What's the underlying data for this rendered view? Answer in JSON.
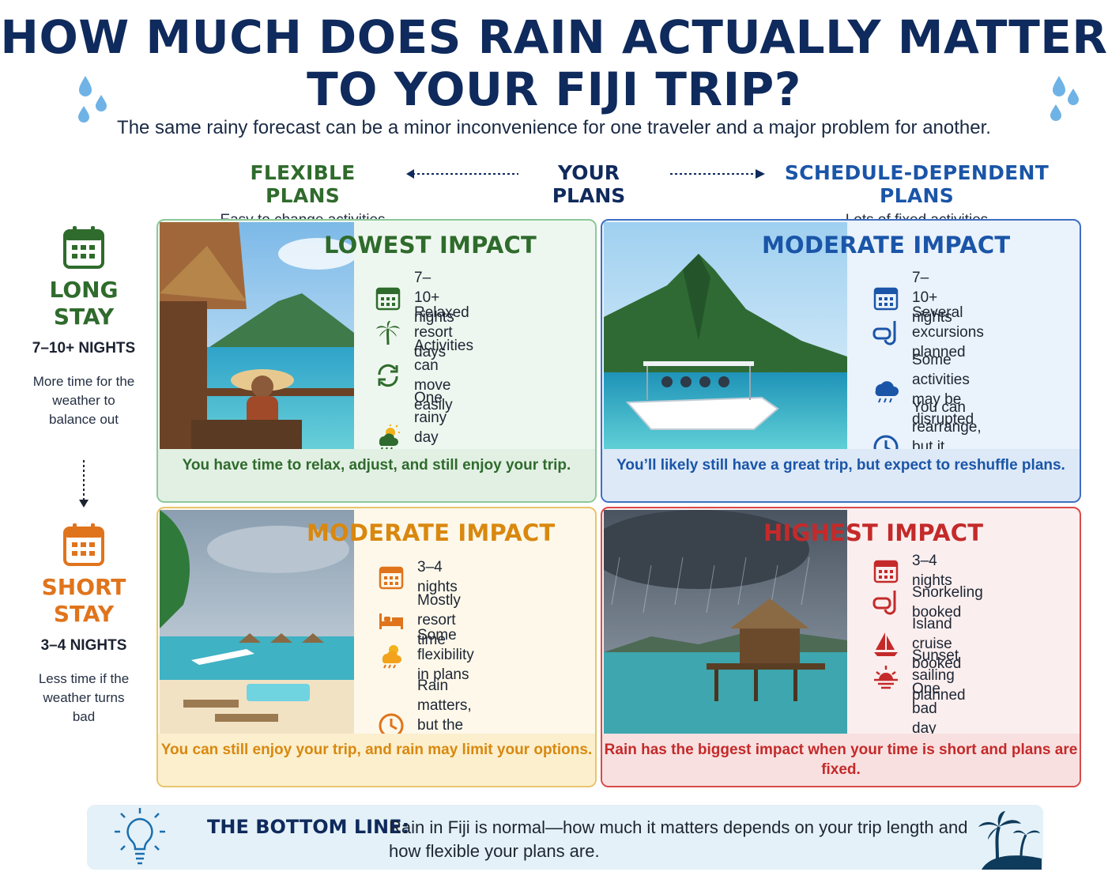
{
  "header": {
    "title": "HOW MUCH DOES RAIN ACTUALLY MATTER TO YOUR FIJI TRIP?",
    "subtitle": "The same rainy forecast can be a minor inconvenience for one traveler and a major problem for another."
  },
  "axis": {
    "flexible": {
      "label": "FLEXIBLE PLANS",
      "sub": "Easy to change activities"
    },
    "center": "YOUR PLANS",
    "schedule": {
      "label": "SCHEDULE-DEPENDENT PLANS",
      "sub": "Lots of fixed activities"
    }
  },
  "stays": {
    "long": {
      "title": "LONG STAY",
      "nights": "7–10+ NIGHTS",
      "note": "More time for the weather to balance out"
    },
    "short": {
      "title": "SHORT STAY",
      "nights": "3–4 NIGHTS",
      "note": "Less time if the weather turns bad"
    }
  },
  "panels": {
    "lowest": {
      "title": "LOWEST IMPACT",
      "image": "resort-balcony-woman-mountain-view",
      "items": [
        {
          "icon": "calendar-icon",
          "text": "7–10+ nights"
        },
        {
          "icon": "palm-tree-icon",
          "text": "Relaxed resort days"
        },
        {
          "icon": "refresh-icon",
          "text": "Activities can move easily"
        },
        {
          "icon": "sun-rain-icon",
          "text": "One rainy day matters less"
        }
      ],
      "footer": "You have time to relax, adjust, and still enjoy your trip."
    },
    "moderate_long": {
      "title": "MODERATE IMPACT",
      "image": "excursion-boat-island-mountain",
      "items": [
        {
          "icon": "calendar-icon",
          "text": "7–10+ nights"
        },
        {
          "icon": "snorkel-icon",
          "text": "Several excursions planned"
        },
        {
          "icon": "rain-cloud-icon",
          "text": "Some activities may be disrupted"
        },
        {
          "icon": "clock-icon",
          "text": "You can rearrange, but it takes flexibility"
        }
      ],
      "footer": "You’ll likely still have a great trip, but expect to reshuffle plans."
    },
    "moderate_short": {
      "title": "MODERATE IMPACT",
      "image": "beach-loungers-overwater-bungalows",
      "items": [
        {
          "icon": "calendar-icon",
          "text": "3–4 nights"
        },
        {
          "icon": "bed-icon",
          "text": "Mostly resort time"
        },
        {
          "icon": "sun-rain-icon",
          "text": "Some flexibility in plans"
        },
        {
          "icon": "clock-icon",
          "text": "Rain matters, but the trip can adapt"
        }
      ],
      "footer": "You can still enjoy your trip, and rain may limit your options."
    },
    "highest": {
      "title": "HIGHEST IMPACT",
      "image": "stormy-overwater-bungalow",
      "items": [
        {
          "icon": "calendar-icon",
          "text": "3–4 nights"
        },
        {
          "icon": "snorkel-icon",
          "text": "Snorkeling booked"
        },
        {
          "icon": "sailboat-icon",
          "text": "Island cruise booked"
        },
        {
          "icon": "sunset-icon",
          "text": "Sunset sailing planned"
        },
        {
          "icon": "storm-cloud-icon",
          "text": "One bad day can affect a large part of the trip"
        }
      ],
      "footer": "Rain has the biggest impact when your time is short and plans are fixed."
    }
  },
  "bottom_line": {
    "label": "THE BOTTOM LINE:",
    "text": "Rain in Fiji is normal—how much it matters depends on your trip length and how flexible your plans are."
  },
  "colors": {
    "navy": "#0f2a5c",
    "green": "#2f6b2c",
    "blue": "#1a55a8",
    "orange": "#e0741c",
    "amber": "#d9880f",
    "red": "#c42a2a"
  }
}
